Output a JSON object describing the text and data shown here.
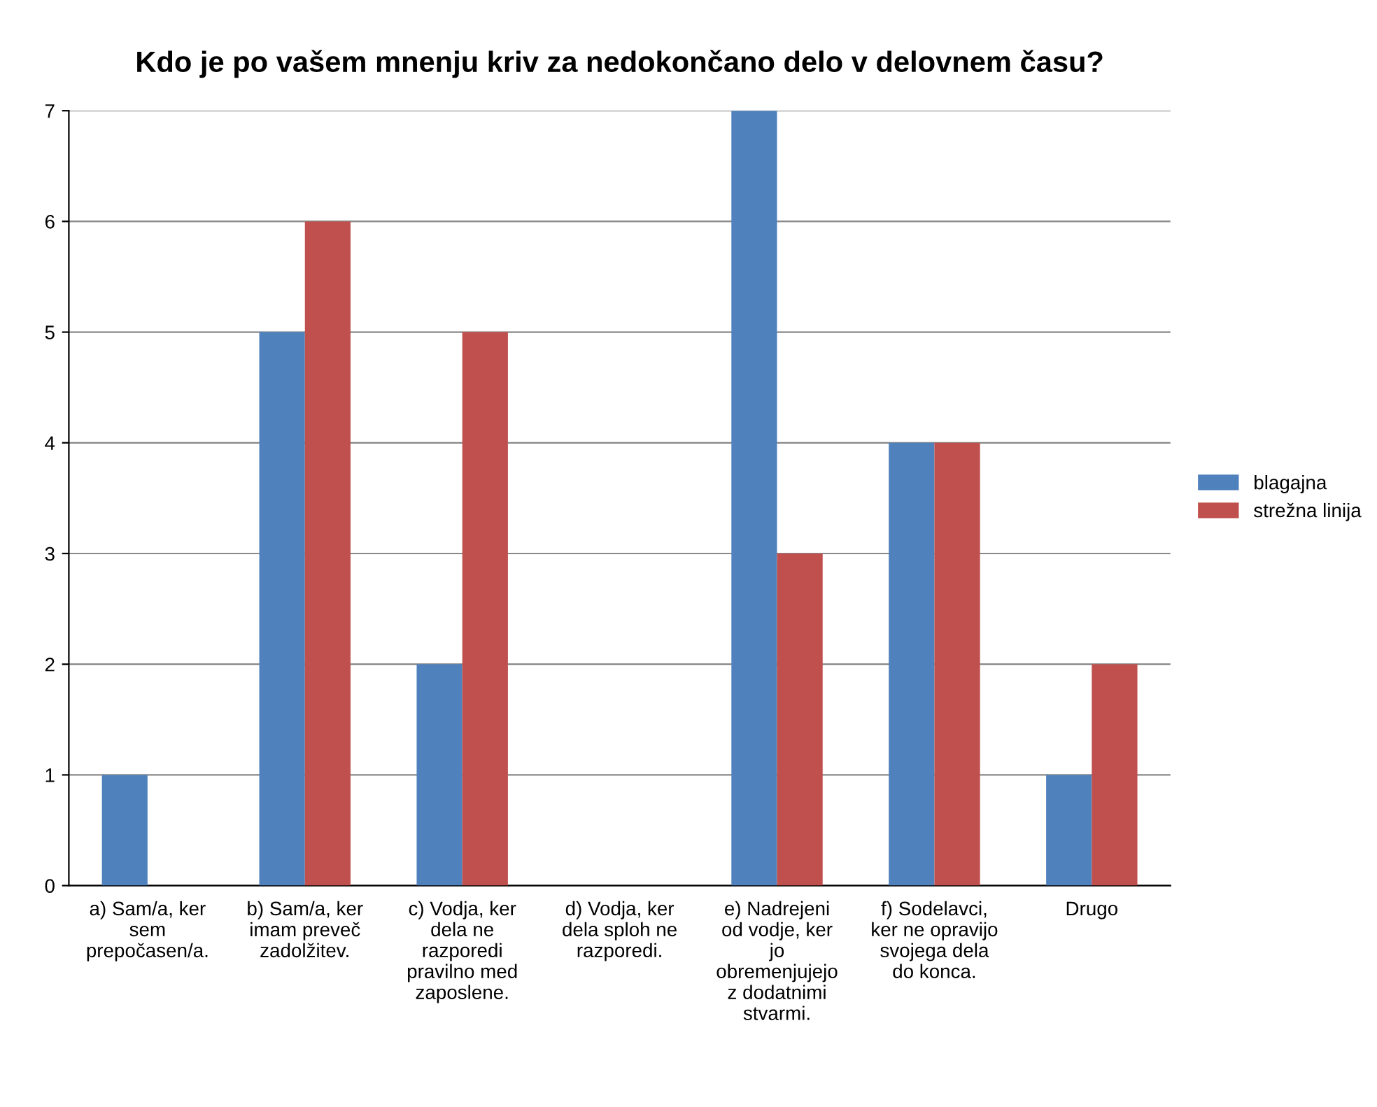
{
  "chart_data": {
    "type": "bar",
    "title": "Kdo je po vašem mnenju kriv za nedokončano delo v delovnem času?",
    "categories": [
      "a) Sam/a, ker\nsem\nprepočasen/a.",
      "b) Sam/a, ker\nimam preveč\nzadolžitev.",
      "c) Vodja, ker\ndela ne\nrazporedi\npravilno med\nzaposlene.",
      "d) Vodja, ker\ndela sploh ne\nrazporedi.",
      "e) Nadrejeni\nod vodje, ker\njo\nobremenjujejo\nz dodatnimi\nstvarmi.",
      "f) Sodelavci,\nker ne opravijo\nsvojega dela\ndo konca.",
      "Drugo"
    ],
    "series": [
      {
        "name": "blagajna",
        "color": "#4f81bd",
        "values": [
          1,
          5,
          2,
          0,
          7,
          4,
          1
        ]
      },
      {
        "name": "strežna linija",
        "color": "#c0504d",
        "values": [
          0,
          6,
          5,
          0,
          3,
          4,
          2
        ]
      }
    ],
    "ylim": [
      0,
      7
    ],
    "yticks": [
      0,
      1,
      2,
      3,
      4,
      5,
      6,
      7
    ],
    "grid": "y",
    "legend": "right"
  }
}
